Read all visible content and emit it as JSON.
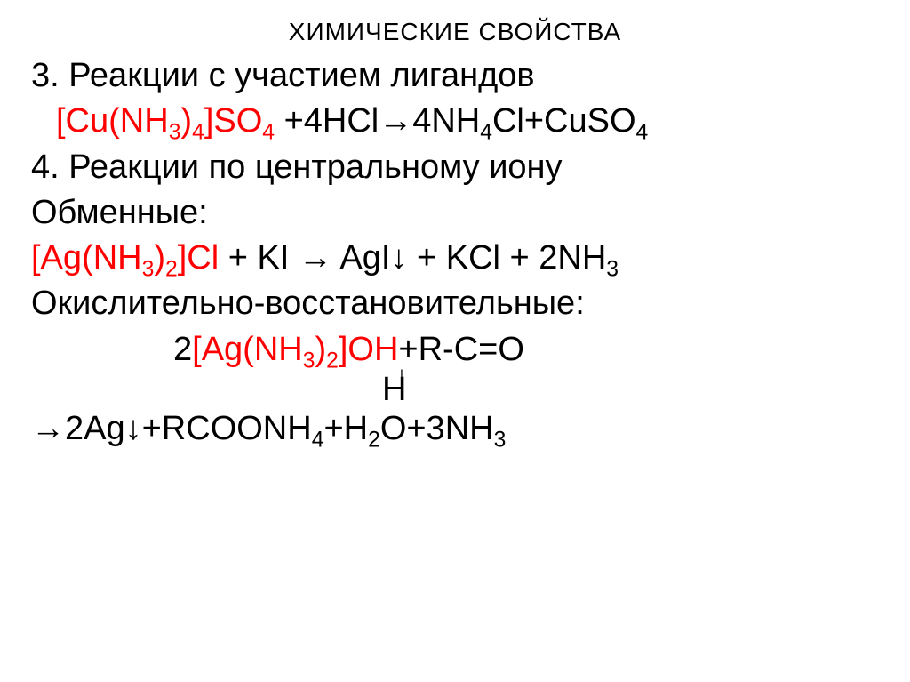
{
  "title": "ХИМИЧЕСКИЕ СВОЙСТВА",
  "section3": {
    "heading": "3. Реакции с участием лигандов",
    "equation_lhs": "[Cu(NH",
    "eq_full_parts": {
      "p1": "[Cu(NH",
      "s1": "3",
      "p2": ")",
      "s2": "4",
      "p3": "]SO",
      "s3": "4",
      "p4": "+4HCl→4NH",
      "s4": "4",
      "p5": "Cl+CuSO",
      "s5": "4"
    }
  },
  "section4": {
    "heading": "4. Реакции по центральному иону",
    "exchange_label": "Обменные:",
    "exchange_eq": {
      "p1": "[Ag(NH",
      "s1": "3",
      "p2": ")",
      "s2": "2",
      "p3": "]Cl",
      "p4": " + KI → AgI↓ + KCl + 2NH",
      "s4": "3"
    },
    "redox_label": "Окислительно-восстановительные:",
    "redox_eq1": {
      "p1": "2",
      "r1": "[Ag(NH",
      "rs1": "3",
      "r2": ")",
      "rs2": "2",
      "r3": "]OH",
      "p2": "+R-C=O"
    },
    "redox_h": "H",
    "redox_eq2": {
      "p1": "→2Ag↓+RCOONH",
      "s1": "4",
      "p2": "+H",
      "s2": "2",
      "p3": "O+3NH",
      "s3": "3"
    }
  },
  "colors": {
    "red": "#ff0000",
    "black": "#000000",
    "background": "#ffffff"
  },
  "typography": {
    "title_fontsize": 28,
    "body_fontsize": 38,
    "font_family": "Arial"
  }
}
